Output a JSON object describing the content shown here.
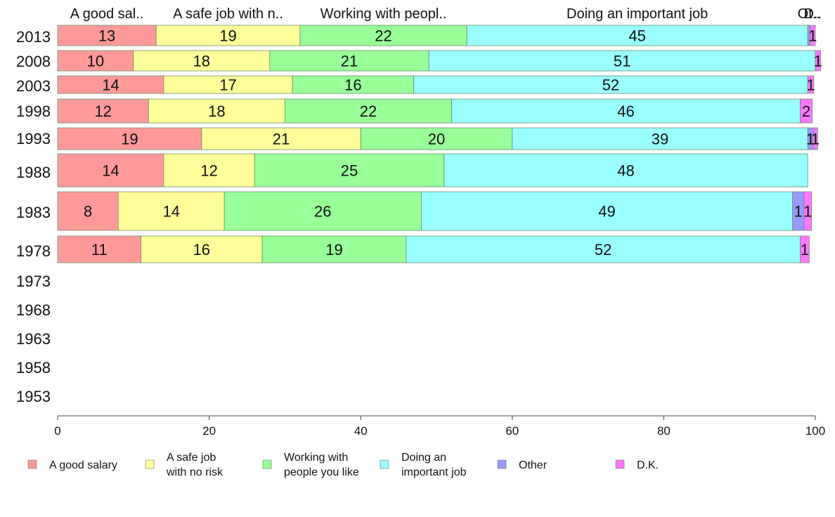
{
  "chart_data": {
    "type": "bar",
    "orientation": "horizontal",
    "stacked": true,
    "categories": [
      "2013",
      "2008",
      "2003",
      "1998",
      "1993",
      "1988",
      "1983",
      "1978",
      "1973",
      "1968",
      "1963",
      "1958",
      "1953"
    ],
    "series": [
      {
        "name": "A good salary",
        "color": "#ff9999",
        "values": [
          13,
          10,
          14,
          12,
          19,
          14,
          8,
          11,
          null,
          null,
          null,
          null,
          null
        ],
        "labels": [
          "13",
          "10",
          "14",
          "12",
          "19",
          "14",
          "8",
          "11",
          "",
          "",
          "",
          "",
          ""
        ]
      },
      {
        "name": "A safe job with no risk",
        "color": "#ffff99",
        "values": [
          19,
          18,
          17,
          18,
          21,
          12,
          14,
          16,
          null,
          null,
          null,
          null,
          null
        ],
        "labels": [
          "19",
          "18",
          "17",
          "18",
          "21",
          "12",
          "14",
          "16",
          "",
          "",
          "",
          "",
          ""
        ]
      },
      {
        "name": "Working with people you like",
        "color": "#99ff99",
        "values": [
          22,
          21,
          16,
          22,
          20,
          25,
          26,
          19,
          null,
          null,
          null,
          null,
          null
        ],
        "labels": [
          "22",
          "21",
          "16",
          "22",
          "20",
          "25",
          "26",
          "19",
          "",
          "",
          "",
          "",
          ""
        ]
      },
      {
        "name": "Doing an important job",
        "color": "#99ffff",
        "values": [
          45,
          51,
          52,
          46,
          39,
          48,
          49,
          52,
          null,
          null,
          null,
          null,
          null
        ],
        "labels": [
          "45",
          "51",
          "52",
          "46",
          "39",
          "48",
          "49",
          "52",
          "",
          "",
          "",
          "",
          ""
        ]
      },
      {
        "name": "Other",
        "color": "#9999ff",
        "values": [
          0.3,
          0,
          0,
          0,
          0.7,
          0,
          1.5,
          0,
          null,
          null,
          null,
          null,
          null
        ],
        "labels": [
          "",
          "",
          "",
          "",
          "1",
          "",
          "1",
          "",
          "",
          "",
          "",
          "",
          ""
        ]
      },
      {
        "name": "D.K.",
        "color": "#ff77ff",
        "values": [
          0.7,
          0.7,
          0.8,
          1.6,
          0.6,
          0,
          1,
          1.2,
          null,
          null,
          null,
          null,
          null
        ],
        "labels": [
          "1",
          "1",
          "1",
          "2",
          "1",
          "",
          "1",
          "1",
          "",
          "",
          "",
          "",
          ""
        ]
      }
    ],
    "column_headers": [
      "A good sal..",
      "A safe job with n..",
      "Working with peopl..",
      "Doing an important job",
      "Ot..",
      "D.."
    ],
    "xlim": [
      0,
      100
    ],
    "xticks": [
      "0",
      "20",
      "40",
      "60",
      "80",
      "100"
    ],
    "legend": {
      "position": "bottom",
      "items": [
        {
          "lines": [
            "A good salary"
          ],
          "color": "#ff9999"
        },
        {
          "lines": [
            "A safe job",
            "with no risk"
          ],
          "color": "#ffff99"
        },
        {
          "lines": [
            "Working with",
            "people you like"
          ],
          "color": "#99ff99"
        },
        {
          "lines": [
            "Doing an",
            "important job"
          ],
          "color": "#99ffff"
        },
        {
          "lines": [
            "Other"
          ],
          "color": "#9999ff"
        },
        {
          "lines": [
            "D.K."
          ],
          "color": "#ff77ff"
        }
      ]
    },
    "grid": false
  }
}
